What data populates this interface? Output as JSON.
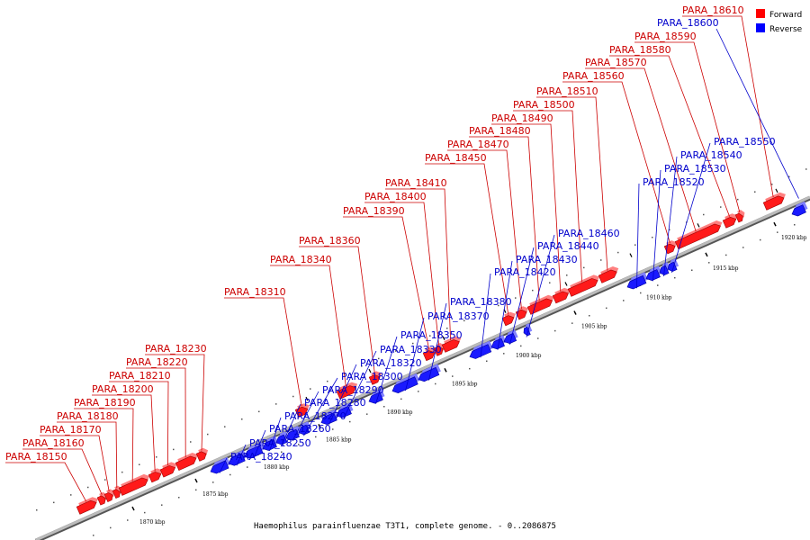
{
  "caption": "Haemophilus parainfluenzae T3T1, complete genome. - 0..2086875",
  "legend": {
    "forward": {
      "label": "Forward",
      "color": "#ff0000"
    },
    "reverse": {
      "label": "Reverse",
      "color": "#0000ff"
    }
  },
  "colors": {
    "forward_fill": "#ff1a1a",
    "forward_side": "#a00000",
    "forward_top": "#ff8080",
    "reverse_fill": "#1a1aff",
    "reverse_side": "#0000a0",
    "reverse_top": "#8080ff",
    "forward_label": "#cc0000",
    "reverse_label": "#0000cc",
    "track": "#888888"
  },
  "ticks": [
    "1870 kbp",
    "1875 kbp",
    "1880 kbp",
    "1885 kbp",
    "1890 kbp",
    "1895 kbp",
    "1900 kbp",
    "1905 kbp",
    "1910 kbp",
    "1915 kbp",
    "1920 kbp"
  ],
  "forward_genes": [
    "PARA_18150",
    "PARA_18160",
    "PARA_18170",
    "PARA_18180",
    "PARA_18190",
    "PARA_18200",
    "PARA_18210",
    "PARA_18220",
    "PARA_18230",
    "PARA_18310",
    "PARA_18340",
    "PARA_18360",
    "PARA_18390",
    "PARA_18400",
    "PARA_18410",
    "PARA_18450",
    "PARA_18470",
    "PARA_18480",
    "PARA_18490",
    "PARA_18500",
    "PARA_18510",
    "PARA_18560",
    "PARA_18570",
    "PARA_18580",
    "PARA_18590",
    "PARA_18610"
  ],
  "reverse_genes": [
    "PARA_18240",
    "PARA_18250",
    "PARA_18260",
    "PARA_18270",
    "PARA_18280",
    "PARA_18290",
    "PARA_18300",
    "PARA_18320",
    "PARA_18330",
    "PARA_18350",
    "PARA_18370",
    "PARA_18380",
    "PARA_18420",
    "PARA_18430",
    "PARA_18440",
    "PARA_18460",
    "PARA_18520",
    "PARA_18530",
    "PARA_18540",
    "PARA_18550",
    "PARA_18600"
  ]
}
